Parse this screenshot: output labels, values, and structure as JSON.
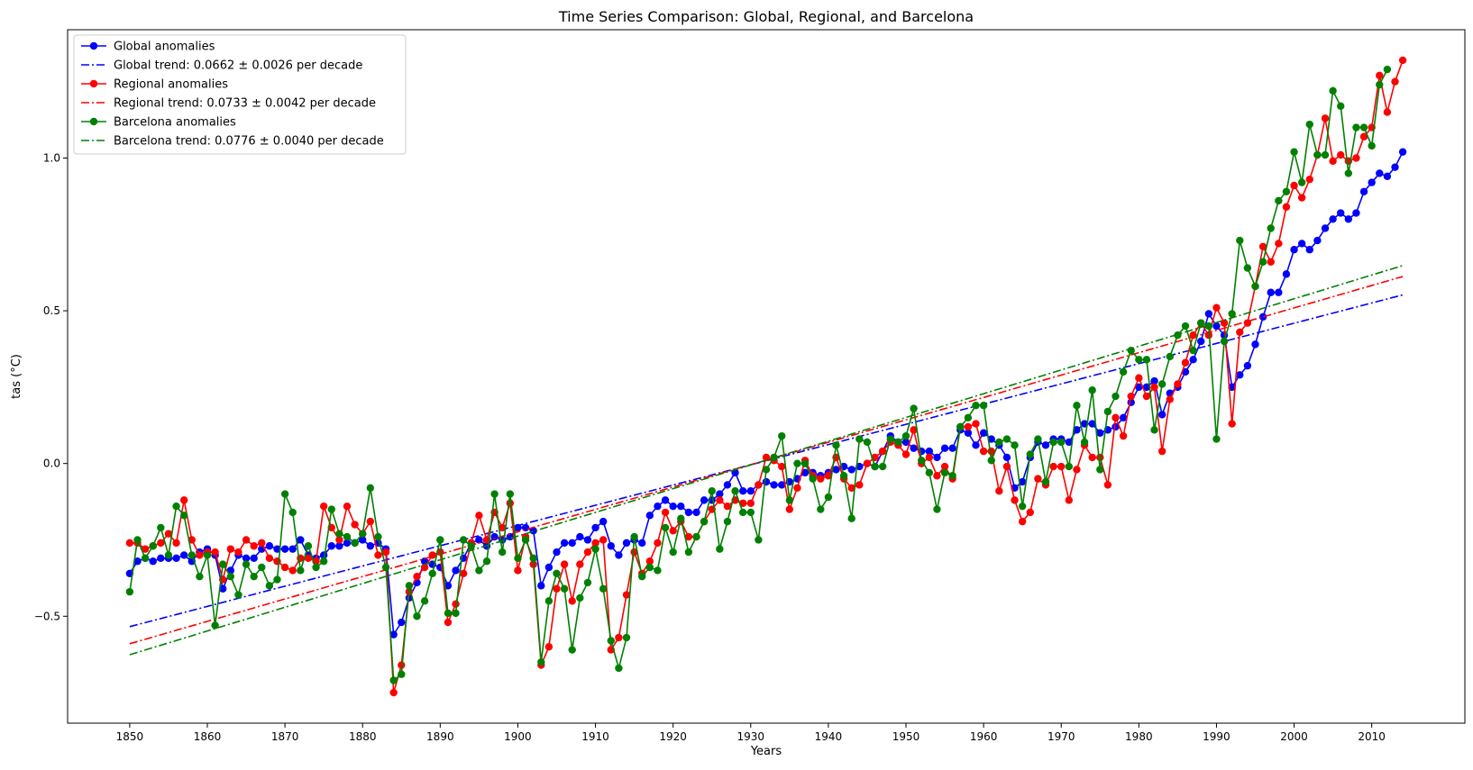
{
  "chart_data": {
    "type": "line",
    "title": "Time Series Comparison: Global, Regional, and Barcelona",
    "xlabel": "Years",
    "ylabel": "tas (°C)",
    "xlim": [
      1842,
      2022
    ],
    "ylim": [
      -0.85,
      1.42
    ],
    "xticks": [
      1850,
      1860,
      1870,
      1880,
      1890,
      1900,
      1910,
      1920,
      1930,
      1940,
      1950,
      1960,
      1970,
      1980,
      1990,
      2000,
      2010
    ],
    "yticks": [
      -0.5,
      0.0,
      0.5,
      1.0
    ],
    "ytick_labels": [
      "−0.5",
      "0.0",
      "0.5",
      "1.0"
    ],
    "grid": false,
    "legend_position": "top-left",
    "x_start": 1850,
    "series": [
      {
        "name": "Global anomalies",
        "kind": "markers-line",
        "color": "#0000ff",
        "values": [
          -0.36,
          -0.32,
          -0.31,
          -0.32,
          -0.31,
          -0.31,
          -0.31,
          -0.3,
          -0.32,
          -0.29,
          -0.28,
          -0.3,
          -0.41,
          -0.35,
          -0.3,
          -0.31,
          -0.31,
          -0.28,
          -0.27,
          -0.28,
          -0.28,
          -0.28,
          -0.25,
          -0.3,
          -0.31,
          -0.3,
          -0.27,
          -0.27,
          -0.26,
          -0.26,
          -0.25,
          -0.27,
          -0.26,
          -0.28,
          -0.56,
          -0.52,
          -0.44,
          -0.39,
          -0.32,
          -0.33,
          -0.34,
          -0.4,
          -0.35,
          -0.31,
          -0.26,
          -0.25,
          -0.27,
          -0.24,
          -0.25,
          -0.24,
          -0.21,
          -0.21,
          -0.22,
          -0.4,
          -0.34,
          -0.29,
          -0.26,
          -0.26,
          -0.24,
          -0.25,
          -0.21,
          -0.19,
          -0.27,
          -0.3,
          -0.26,
          -0.25,
          -0.26,
          -0.17,
          -0.14,
          -0.12,
          -0.14,
          -0.14,
          -0.16,
          -0.16,
          -0.12,
          -0.12,
          -0.1,
          -0.07,
          -0.03,
          -0.09,
          -0.09,
          -0.07,
          -0.06,
          -0.07,
          -0.07,
          -0.06,
          -0.05,
          -0.03,
          -0.03,
          -0.04,
          -0.03,
          -0.02,
          -0.01,
          -0.02,
          -0.01,
          0.0,
          -0.01,
          0.04,
          0.09,
          0.07,
          0.07,
          0.05,
          0.04,
          0.04,
          0.02,
          0.05,
          0.05,
          0.11,
          0.1,
          0.06,
          0.1,
          0.08,
          0.06,
          0.02,
          -0.08,
          -0.06,
          0.02,
          0.07,
          0.06,
          0.08,
          0.08,
          0.07,
          0.11,
          0.13,
          0.13,
          0.1,
          0.11,
          0.12,
          0.15,
          0.2,
          0.25,
          0.25,
          0.27,
          0.16,
          0.23,
          0.25,
          0.3,
          0.34,
          0.4,
          0.49,
          0.45,
          0.42,
          0.25,
          0.29,
          0.32,
          0.39,
          0.48,
          0.56,
          0.56,
          0.62,
          0.7,
          0.72,
          0.7,
          0.73,
          0.77,
          0.8,
          0.82,
          0.8,
          0.82,
          0.89,
          0.92,
          0.95,
          0.94,
          0.97,
          1.02
        ]
      },
      {
        "name": "Global trend: 0.0662 ± 0.0026 per decade",
        "kind": "dashdot",
        "color": "#0000ff",
        "line": [
          [
            1850,
            -0.534
          ],
          [
            2014,
            0.552
          ]
        ]
      },
      {
        "name": "Regional anomalies",
        "kind": "markers-line",
        "color": "#ff0000",
        "values": [
          -0.26,
          -0.26,
          -0.28,
          -0.27,
          -0.26,
          -0.23,
          -0.26,
          -0.12,
          -0.25,
          -0.3,
          -0.29,
          -0.29,
          -0.38,
          -0.28,
          -0.29,
          -0.25,
          -0.27,
          -0.26,
          -0.31,
          -0.32,
          -0.34,
          -0.35,
          -0.31,
          -0.31,
          -0.32,
          -0.14,
          -0.21,
          -0.25,
          -0.14,
          -0.2,
          -0.23,
          -0.19,
          -0.3,
          -0.29,
          -0.75,
          -0.66,
          -0.42,
          -0.37,
          -0.34,
          -0.3,
          -0.29,
          -0.52,
          -0.46,
          -0.36,
          -0.26,
          -0.17,
          -0.25,
          -0.16,
          -0.21,
          -0.13,
          -0.35,
          -0.24,
          -0.33,
          -0.66,
          -0.6,
          -0.41,
          -0.33,
          -0.45,
          -0.33,
          -0.29,
          -0.26,
          -0.25,
          -0.61,
          -0.57,
          -0.43,
          -0.29,
          -0.36,
          -0.32,
          -0.26,
          -0.16,
          -0.22,
          -0.19,
          -0.24,
          -0.24,
          -0.19,
          -0.15,
          -0.12,
          -0.14,
          -0.12,
          -0.13,
          -0.13,
          -0.07,
          0.02,
          0.01,
          -0.01,
          -0.15,
          -0.08,
          0.01,
          -0.04,
          -0.05,
          -0.04,
          0.02,
          -0.05,
          -0.08,
          -0.07,
          0.0,
          0.02,
          0.04,
          0.07,
          0.06,
          0.03,
          0.11,
          0.0,
          0.02,
          -0.04,
          -0.01,
          -0.05,
          0.12,
          0.12,
          0.13,
          0.04,
          0.04,
          -0.09,
          -0.01,
          -0.12,
          -0.19,
          -0.16,
          -0.05,
          -0.07,
          -0.01,
          -0.01,
          -0.12,
          -0.02,
          0.06,
          0.02,
          0.02,
          -0.07,
          0.15,
          0.09,
          0.22,
          0.28,
          0.22,
          0.25,
          0.04,
          0.21,
          0.26,
          0.33,
          0.42,
          0.46,
          0.42,
          0.51,
          0.46,
          0.13,
          0.43,
          0.46,
          0.58,
          0.71,
          0.66,
          0.72,
          0.84,
          0.91,
          0.87,
          0.93,
          1.01,
          1.13,
          0.99,
          1.01,
          0.99,
          1.0,
          1.07,
          1.1,
          1.27,
          1.15,
          1.25,
          1.32
        ]
      },
      {
        "name": "Regional trend: 0.0733 ± 0.0042 per decade",
        "kind": "dashdot",
        "color": "#ff0000",
        "line": [
          [
            1850,
            -0.59
          ],
          [
            2014,
            0.612
          ]
        ]
      },
      {
        "name": "Barcelona anomalies",
        "kind": "markers-line",
        "color": "#008000",
        "values": [
          -0.42,
          -0.25,
          -0.31,
          -0.27,
          -0.21,
          -0.3,
          -0.14,
          -0.17,
          -0.3,
          -0.37,
          -0.3,
          -0.53,
          -0.33,
          -0.37,
          -0.43,
          -0.33,
          -0.37,
          -0.34,
          -0.4,
          -0.38,
          -0.1,
          -0.16,
          -0.35,
          -0.27,
          -0.34,
          -0.32,
          -0.15,
          -0.23,
          -0.24,
          -0.26,
          -0.23,
          -0.08,
          -0.24,
          -0.34,
          -0.71,
          -0.69,
          -0.4,
          -0.5,
          -0.45,
          -0.36,
          -0.25,
          -0.49,
          -0.49,
          -0.25,
          -0.27,
          -0.35,
          -0.32,
          -0.1,
          -0.29,
          -0.1,
          -0.31,
          -0.25,
          -0.31,
          -0.65,
          -0.45,
          -0.36,
          -0.41,
          -0.61,
          -0.44,
          -0.39,
          -0.28,
          -0.41,
          -0.58,
          -0.67,
          -0.57,
          -0.24,
          -0.37,
          -0.34,
          -0.35,
          -0.21,
          -0.29,
          -0.18,
          -0.29,
          -0.24,
          -0.19,
          -0.09,
          -0.28,
          -0.19,
          -0.09,
          -0.16,
          -0.16,
          -0.25,
          -0.02,
          0.02,
          0.09,
          -0.12,
          0.0,
          0.0,
          -0.05,
          -0.15,
          -0.11,
          0.06,
          -0.04,
          -0.18,
          0.08,
          0.07,
          -0.01,
          -0.01,
          0.08,
          0.07,
          0.09,
          0.18,
          0.01,
          -0.03,
          -0.15,
          -0.03,
          -0.04,
          0.12,
          0.15,
          0.19,
          0.19,
          0.01,
          0.07,
          0.08,
          0.06,
          -0.14,
          0.03,
          0.08,
          -0.06,
          0.07,
          0.07,
          -0.01,
          0.19,
          0.07,
          0.24,
          -0.02,
          0.17,
          0.22,
          0.3,
          0.37,
          0.34,
          0.34,
          0.11,
          0.26,
          0.35,
          0.42,
          0.45,
          0.37,
          0.46,
          0.45,
          0.08,
          0.4,
          0.49,
          0.73,
          0.64,
          0.58,
          0.66,
          0.77,
          0.86,
          0.89,
          1.02,
          0.92,
          1.11,
          1.01,
          1.01,
          1.22,
          1.17,
          0.95,
          1.1,
          1.1,
          1.04,
          1.24,
          1.29
        ]
      },
      {
        "name": "Barcelona trend: 0.0776 ± 0.0040 per decade",
        "kind": "dashdot",
        "color": "#008000",
        "line": [
          [
            1850,
            -0.626
          ],
          [
            2014,
            0.648
          ]
        ]
      }
    ]
  }
}
